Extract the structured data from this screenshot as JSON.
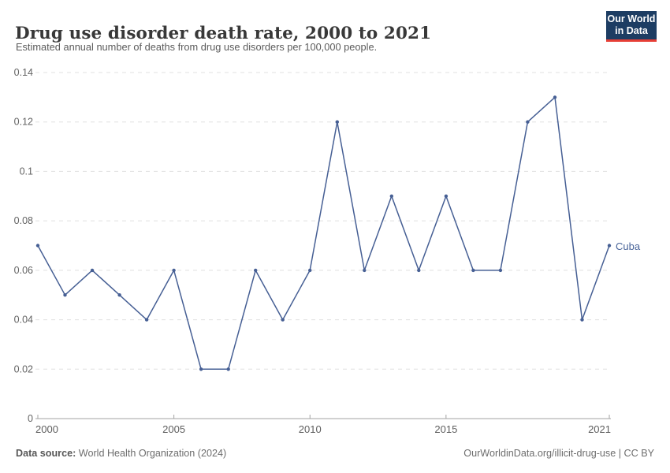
{
  "header": {
    "title": "Drug use disorder death rate, 2000 to 2021",
    "subtitle": "Estimated annual number of deaths from drug use disorders per 100,000 people."
  },
  "logo": {
    "line1": "Our World",
    "line2": "in Data"
  },
  "chart_data": {
    "type": "line",
    "title": "Drug use disorder death rate, 2000 to 2021",
    "xlabel": "",
    "ylabel": "Estimated annual deaths from drug use disorders per 100,000 people",
    "x": [
      2000,
      2001,
      2002,
      2003,
      2004,
      2005,
      2006,
      2007,
      2008,
      2009,
      2010,
      2011,
      2012,
      2013,
      2014,
      2015,
      2016,
      2017,
      2018,
      2019,
      2020,
      2021
    ],
    "series": [
      {
        "name": "Cuba",
        "values": [
          0.07,
          0.05,
          0.06,
          0.05,
          0.04,
          0.06,
          0.02,
          0.02,
          0.06,
          0.04,
          0.06,
          0.12,
          0.06,
          0.09,
          0.06,
          0.09,
          0.06,
          0.06,
          0.12,
          0.13,
          0.04,
          0.07
        ]
      }
    ],
    "ylim": [
      0,
      0.14
    ],
    "yticks": [
      0,
      0.02,
      0.04,
      0.06,
      0.08,
      0.1,
      0.12,
      0.14
    ],
    "ytick_labels": [
      "0",
      "0.02",
      "0.04",
      "0.06",
      "0.08",
      "0.1",
      "0.12",
      "0.14"
    ],
    "xticks": [
      2000,
      2005,
      2010,
      2015,
      2021
    ],
    "grid": "horizontal-dashed",
    "legend_position": "end-of-line",
    "colors": {
      "line": "#465f94",
      "grid": "#e0e0e0",
      "axis": "#a3a3a3",
      "tick_text": "#636363",
      "series_label": "#4a659a"
    }
  },
  "footer": {
    "source_label": "Data source:",
    "source_value": "World Health Organization (2024)",
    "credit": "OurWorldinData.org/illicit-drug-use | CC BY"
  }
}
